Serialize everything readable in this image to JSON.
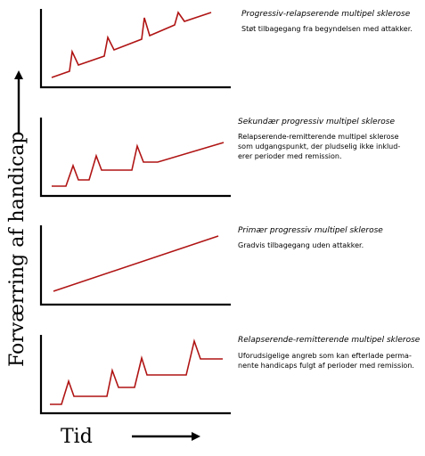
{
  "diagram": {
    "y_axis_label": "Forværring af handicap",
    "x_axis_label": "Tid",
    "panels": [
      {
        "id": "prms",
        "title": "Progressiv-relapserende multipel sklerose",
        "description": [
          "Støt tilbagegang fra begyndelsen med attakker."
        ]
      },
      {
        "id": "spms",
        "title": "Sekundær progressiv multipel sklerose",
        "description": [
          "Relapserende-remitterende multipel sklerose",
          "som udgangspunkt, der pludselig ikke inklud-",
          "erer perioder med remission."
        ]
      },
      {
        "id": "ppms",
        "title": "Primær progressiv multipel sklerose",
        "description": [
          "Gradvis tilbagegang uden attakker."
        ]
      },
      {
        "id": "rrms",
        "title": "Relapserende-remitterende multipel sklerose",
        "description": [
          "Uforudsigelige angreb som kan efterlade perma-",
          "nente handicaps fulgt af perioder med remission."
        ]
      }
    ],
    "colors": {
      "curve": "#b01414",
      "axis": "#000000"
    }
  }
}
